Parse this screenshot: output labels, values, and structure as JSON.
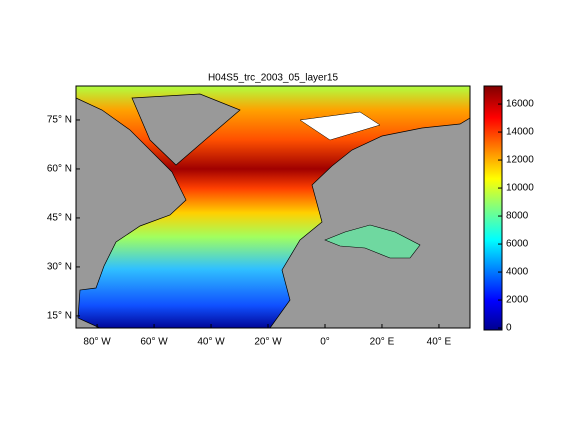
{
  "title": "H04S5_trc_2003_05_layer15",
  "x_axis": {
    "lim": [
      -87.4,
      50.9
    ],
    "ticks": [
      {
        "value": -80,
        "label": "80° W"
      },
      {
        "value": -60,
        "label": "60° W"
      },
      {
        "value": -40,
        "label": "40° W"
      },
      {
        "value": -20,
        "label": "20° W"
      },
      {
        "value": 0,
        "label": "0°"
      },
      {
        "value": 20,
        "label": "20° E"
      },
      {
        "value": 40,
        "label": "40° E"
      }
    ]
  },
  "y_axis": {
    "lim": [
      11.3,
      85.4
    ],
    "ticks": [
      {
        "value": 15,
        "label": "15° N"
      },
      {
        "value": 30,
        "label": "30° N"
      },
      {
        "value": 45,
        "label": "45° N"
      },
      {
        "value": 60,
        "label": "60° N"
      },
      {
        "value": 75,
        "label": "75° N"
      }
    ]
  },
  "colorbar": {
    "lim": [
      -140,
      17290
    ],
    "ticks": [
      0,
      2000,
      4000,
      6000,
      8000,
      10000,
      12000,
      14000,
      16000
    ]
  }
}
